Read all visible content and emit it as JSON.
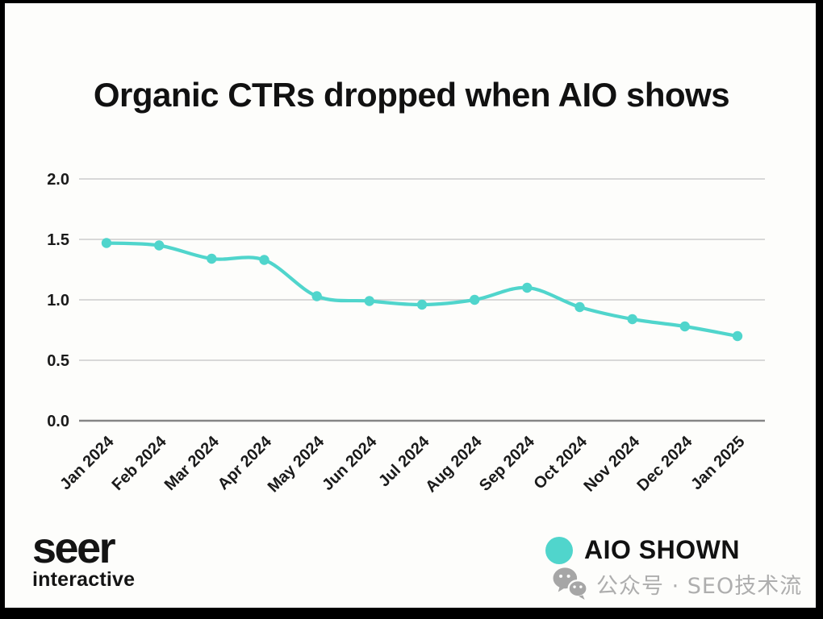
{
  "chart_data": {
    "type": "line",
    "title": "Organic CTRs dropped when AIO shows",
    "categories": [
      "Jan 2024",
      "Feb 2024",
      "Mar 2024",
      "Apr 2024",
      "May 2024",
      "Jun 2024",
      "Jul 2024",
      "Aug 2024",
      "Sep 2024",
      "Oct 2024",
      "Nov 2024",
      "Dec 2024",
      "Jan 2025"
    ],
    "series": [
      {
        "name": "AIO SHOWN",
        "values": [
          1.47,
          1.45,
          1.34,
          1.33,
          1.03,
          0.99,
          0.96,
          1.0,
          1.1,
          0.94,
          0.84,
          0.78,
          0.7
        ]
      }
    ],
    "xlabel": "",
    "ylabel": "",
    "yticks": [
      0.0,
      0.5,
      1.0,
      1.5,
      2.0
    ],
    "ylim": [
      0,
      2.0
    ],
    "grid": true,
    "legend_position": "bottom-right",
    "line_color": "#50d5cc",
    "grid_color": "#cccccc",
    "axis_color": "#858585",
    "text_color": "#1a1a1a"
  },
  "footer": {
    "brand": {
      "name": "seer",
      "sub": "interactive"
    },
    "watermark": "公众号 · SEO技术流"
  }
}
